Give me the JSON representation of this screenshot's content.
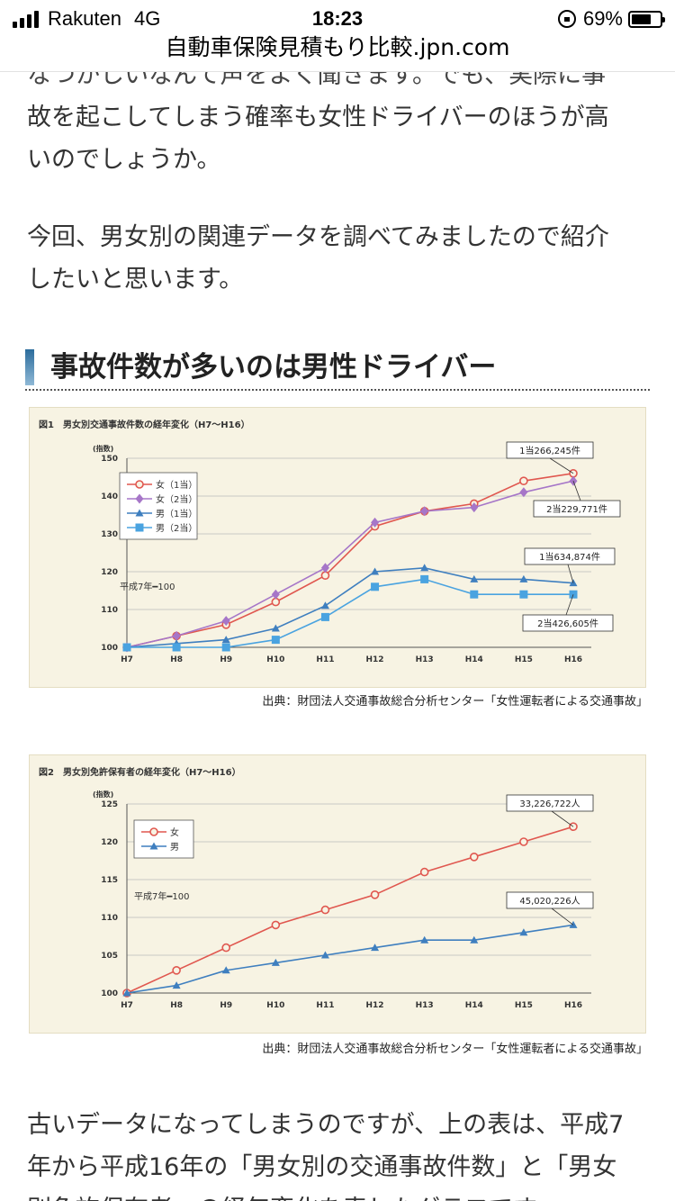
{
  "status": {
    "carrier": "Rakuten",
    "network": "4G",
    "time": "18:23",
    "battery": "69%",
    "battery_level": 0.69
  },
  "browser": {
    "url": "自動車保険見積もり比較.jpn.com"
  },
  "article": {
    "p0_line1": "なつかしいなんて声をよく聞きます。でも、実際に事",
    "p0_line2": "故を起こしてしまう確率も女性ドライバーのほうが高",
    "p0_line3": "いのでしょうか。",
    "p1_line1": "今回、男女別の関連データを調べてみましたので紹介",
    "p1_line2": "したいと思います。",
    "heading": "事故件数が多いのは男性ドライバー",
    "p2_line1": "古いデータになってしまうのですが、上の表は、平成7",
    "p2_line2": "年から平成16年の「男女別の交通事故件数」と「男女",
    "p2_line3": "別免許保有者」の経年変化を表したグラフです。"
  },
  "figure1": {
    "title": "図1　男女別交通事故件数の経年変化（H7～H16）",
    "source": "出典：財団法人交通事故総合分析センター「女性運転者による交通事故」"
  },
  "figure2": {
    "title": "図2　男女別免許保有者の経年変化（H7～H16）",
    "source": "出典：財団法人交通事故総合分析センター「女性運転者による交通事故」"
  },
  "chart_data": [
    {
      "type": "line",
      "title": "図1　男女別交通事故件数の経年変化（H7～H16）",
      "ylabel": "(指数)",
      "ylim": [
        100,
        150
      ],
      "yticks": [
        100,
        110,
        120,
        130,
        140,
        150
      ],
      "categories": [
        "H7",
        "H8",
        "H9",
        "H10",
        "H11",
        "H12",
        "H13",
        "H14",
        "H15",
        "H16"
      ],
      "note": "平成7年━100",
      "legend_position": "top-left",
      "series": [
        {
          "name": "女（1当）",
          "color": "#e0574f",
          "marker": "circle",
          "values": [
            100,
            103,
            106,
            112,
            119,
            132,
            136,
            138,
            144,
            146
          ]
        },
        {
          "name": "女（2当）",
          "color": "#a676c8",
          "marker": "diamond",
          "values": [
            100,
            103,
            107,
            114,
            121,
            133,
            136,
            137,
            141,
            144
          ]
        },
        {
          "name": "男（1当）",
          "color": "#3f7fbf",
          "marker": "triangle",
          "values": [
            100,
            101,
            102,
            105,
            111,
            120,
            121,
            118,
            118,
            117
          ]
        },
        {
          "name": "男（2当）",
          "color": "#4aa3e0",
          "marker": "square",
          "values": [
            100,
            100,
            100,
            102,
            108,
            116,
            118,
            114,
            114,
            114
          ]
        }
      ],
      "annotations": [
        "1当266,245件",
        "2当229,771件",
        "1当634,874件",
        "2当426,605件"
      ]
    },
    {
      "type": "line",
      "title": "図2　男女別免許保有者の経年変化（H7～H16）",
      "ylabel": "(指数)",
      "ylim": [
        100,
        125
      ],
      "yticks": [
        100,
        105,
        110,
        115,
        120,
        125
      ],
      "categories": [
        "H7",
        "H8",
        "H9",
        "H10",
        "H11",
        "H12",
        "H13",
        "H14",
        "H15",
        "H16"
      ],
      "note": "平成7年━100",
      "legend_position": "top-left",
      "series": [
        {
          "name": "女",
          "color": "#e0574f",
          "marker": "circle",
          "values": [
            100,
            103,
            106,
            109,
            111,
            113,
            116,
            118,
            120,
            122
          ]
        },
        {
          "name": "男",
          "color": "#3f7fbf",
          "marker": "triangle",
          "values": [
            100,
            101,
            103,
            104,
            105,
            106,
            107,
            107,
            108,
            109
          ]
        }
      ],
      "annotations": [
        "33,226,722人",
        "45,020,226人"
      ]
    }
  ]
}
